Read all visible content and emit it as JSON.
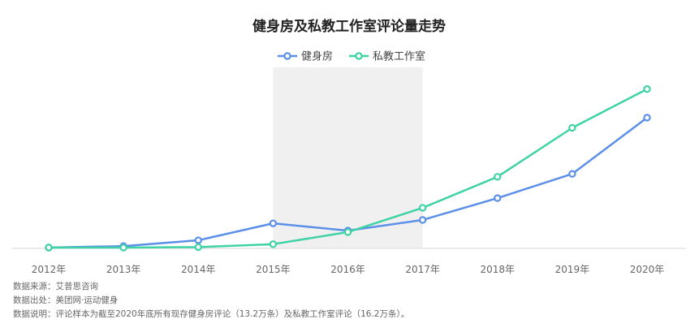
{
  "chart_data": {
    "type": "line",
    "title": "健身房及私教工作室评论量走势",
    "categories": [
      "2012年",
      "2013年",
      "2014年",
      "2015年",
      "2016年",
      "2017年",
      "2018年",
      "2019年",
      "2020年"
    ],
    "series": [
      {
        "name": "健身房",
        "color": "#5B8FE8",
        "values": [
          0.0,
          0.3,
          1.5,
          5.0,
          3.5,
          5.7,
          10.2,
          15.2,
          26.8
        ]
      },
      {
        "name": "私教工作室",
        "color": "#3FD2A4",
        "values": [
          0.0,
          0.0,
          0.1,
          0.7,
          3.2,
          8.2,
          14.6,
          24.7,
          32.7
        ]
      }
    ],
    "ylim": [
      0,
      36
    ],
    "highlight": {
      "from": "2015年",
      "to": "2017年",
      "color": "#F0F0F0"
    },
    "legend": "top-center",
    "grid": false,
    "y_axis_visible": false
  },
  "notes": [
    "数据来源：艾普思咨询",
    "数据出处：美团网·运动健身",
    "数据说明：评论样本为截至2020年底所有现存健身房评论（13.2万条）及私教工作室评论（16.2万条）。"
  ]
}
